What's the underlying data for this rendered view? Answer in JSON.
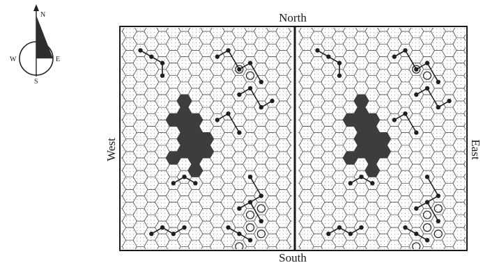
{
  "compass": {
    "north": "N",
    "south": "S",
    "west": "W",
    "east": "E"
  },
  "labels": {
    "top": "North",
    "bottom": "South",
    "left": "West",
    "right": "East"
  },
  "panels": [
    {
      "id": "left",
      "clusters": [
        {
          "num": "2",
          "kind": "line",
          "hex": [
            [
              5,
              3
            ],
            [
              6,
              3
            ],
            [
              7,
              4
            ]
          ]
        },
        {
          "num": "8",
          "kind": "line",
          "hex": [
            [
              9,
              11
            ],
            [
              10,
              11
            ],
            [
              11,
              12
            ],
            [
              12,
              12
            ]
          ]
        },
        {
          "num": "4",
          "kind": "line",
          "hex": [
            [
              3,
              15
            ],
            [
              4,
              15
            ],
            [
              5,
              15
            ],
            [
              6,
              16
            ]
          ]
        }
      ]
    },
    {
      "id": "right",
      "clusters": [
        {
          "num": "2",
          "kind": "line",
          "hex": [
            [
              5,
              3
            ],
            [
              6,
              3
            ],
            [
              7,
              4
            ]
          ]
        },
        {
          "num": "8",
          "kind": "line",
          "hex": [
            [
              9,
              11
            ],
            [
              10,
              11
            ],
            [
              11,
              12
            ],
            [
              12,
              12
            ]
          ]
        },
        {
          "num": "4",
          "kind": "line",
          "hex": [
            [
              3,
              15
            ],
            [
              4,
              15
            ],
            [
              5,
              15
            ],
            [
              6,
              16
            ]
          ]
        }
      ]
    }
  ]
}
